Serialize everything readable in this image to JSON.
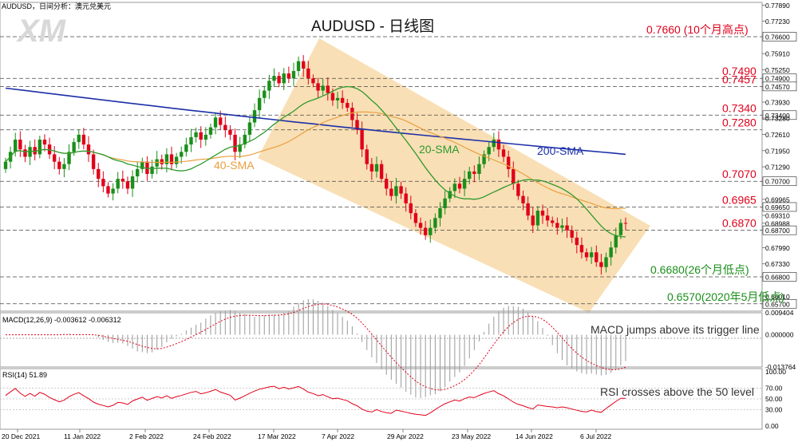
{
  "header": {
    "symbol_info": "AUDUSD，日间分析：澳元兑美元",
    "title": "AUDUSD - 日线图",
    "logo_text": "XM"
  },
  "colors": {
    "bull_candle": "#1a8f1a",
    "bear_candle": "#e0001a",
    "sma20": "#2e9a2e",
    "sma40": "#e8a040",
    "sma200": "#1c2fa8",
    "channel": "#f8d9a8",
    "level_label": "#e0001a",
    "support_label": "#1a8f1a",
    "macd_signal": "#e0001a",
    "rsi_line": "#e0001a",
    "price_marker": "#000000"
  },
  "chart_data": [
    {
      "type": "candlestick",
      "title": "AUDUSD - 日线图",
      "x_tick_labels": [
        "20 Dec 2021",
        "11 Jan 2022",
        "2 Feb 2022",
        "24 Feb 2022",
        "17 Mar 2022",
        "7 Apr 2022",
        "29 Apr 2022",
        "23 May 2022",
        "14 Jun 2022",
        "6 Jul 2022"
      ],
      "y_tick_labels": [
        "0.77890",
        "0.77230",
        "0.76600",
        "0.75910",
        "0.75250",
        "0.74900",
        "0.74570",
        "0.73930",
        "0.73400",
        "0.73280",
        "0.72610",
        "0.71950",
        "0.71290",
        "0.70700",
        "0.69965",
        "0.69650",
        "0.69310",
        "0.68988",
        "0.68700",
        "0.67990",
        "0.67330",
        "0.66800",
        "0.66010",
        "0.65700"
      ],
      "ylim": [
        0.654,
        0.78
      ],
      "close_start": 0.712,
      "closes": [
        0.715,
        0.719,
        0.724,
        0.72,
        0.717,
        0.721,
        0.718,
        0.724,
        0.722,
        0.718,
        0.715,
        0.712,
        0.714,
        0.719,
        0.723,
        0.726,
        0.722,
        0.718,
        0.712,
        0.708,
        0.705,
        0.702,
        0.704,
        0.708,
        0.707,
        0.704,
        0.709,
        0.712,
        0.715,
        0.71,
        0.713,
        0.716,
        0.714,
        0.718,
        0.714,
        0.717,
        0.719,
        0.722,
        0.725,
        0.727,
        0.724,
        0.726,
        0.729,
        0.733,
        0.73,
        0.728,
        0.726,
        0.719,
        0.722,
        0.726,
        0.731,
        0.736,
        0.741,
        0.744,
        0.748,
        0.75,
        0.747,
        0.751,
        0.749,
        0.752,
        0.756,
        0.753,
        0.749,
        0.747,
        0.744,
        0.746,
        0.743,
        0.74,
        0.741,
        0.739,
        0.737,
        0.732,
        0.728,
        0.72,
        0.714,
        0.711,
        0.714,
        0.708,
        0.704,
        0.701,
        0.705,
        0.702,
        0.698,
        0.694,
        0.69,
        0.688,
        0.685,
        0.688,
        0.692,
        0.696,
        0.7,
        0.703,
        0.706,
        0.704,
        0.708,
        0.711,
        0.71,
        0.714,
        0.718,
        0.721,
        0.724,
        0.72,
        0.717,
        0.712,
        0.706,
        0.701,
        0.698,
        0.693,
        0.689,
        0.695,
        0.693,
        0.691,
        0.69,
        0.688,
        0.689,
        0.687,
        0.684,
        0.681,
        0.678,
        0.676,
        0.678,
        0.674,
        0.672,
        0.676,
        0.68,
        0.685,
        0.69,
        0.6899
      ],
      "series": [
        {
          "name": "20-SMA",
          "label_position": "mid-chart"
        },
        {
          "name": "40-SMA",
          "label_position": "left"
        },
        {
          "name": "200-SMA",
          "start": 0.745,
          "end": 0.718
        }
      ],
      "levels": [
        {
          "value": 0.766,
          "label": "0.7660 (10个月高点)",
          "color": "red"
        },
        {
          "value": 0.749,
          "label": "0.7490",
          "color": "red"
        },
        {
          "value": 0.7457,
          "label": "0.7457",
          "color": "red"
        },
        {
          "value": 0.734,
          "label": "0.7340",
          "color": "red"
        },
        {
          "value": 0.728,
          "label": "0.7280",
          "color": "red"
        },
        {
          "value": 0.707,
          "label": "0.7070",
          "color": "red"
        },
        {
          "value": 0.6965,
          "label": "0.6965",
          "color": "red"
        },
        {
          "value": 0.687,
          "label": "0.6870",
          "color": "red"
        },
        {
          "value": 0.668,
          "label": "0.6680(26个月低点)",
          "color": "green"
        },
        {
          "value": 0.657,
          "label": "0.6570(2020年5月低点)",
          "color": "green"
        }
      ],
      "channel": "falling channel from the 17 Mar 2022 high to the 6 Jul 2022 low"
    },
    {
      "type": "histogram",
      "title": "MACD(12,26,9) -0.003612 -0.006312",
      "y_tick_labels": [
        "0.009404",
        "0.000000",
        "-0.013764"
      ],
      "ylim": [
        -0.0138,
        0.0094
      ],
      "annotation": "MACD jumps above its trigger line"
    },
    {
      "type": "line",
      "title": "RSI(14) 51.89",
      "y_tick_labels": [
        "100.00",
        "70.00",
        "50.00",
        "30.00",
        "0.00"
      ],
      "ylim": [
        0,
        100
      ],
      "reference_lines": [
        70,
        50,
        30
      ],
      "annotation": "RSI crosses above the 50 level"
    }
  ]
}
